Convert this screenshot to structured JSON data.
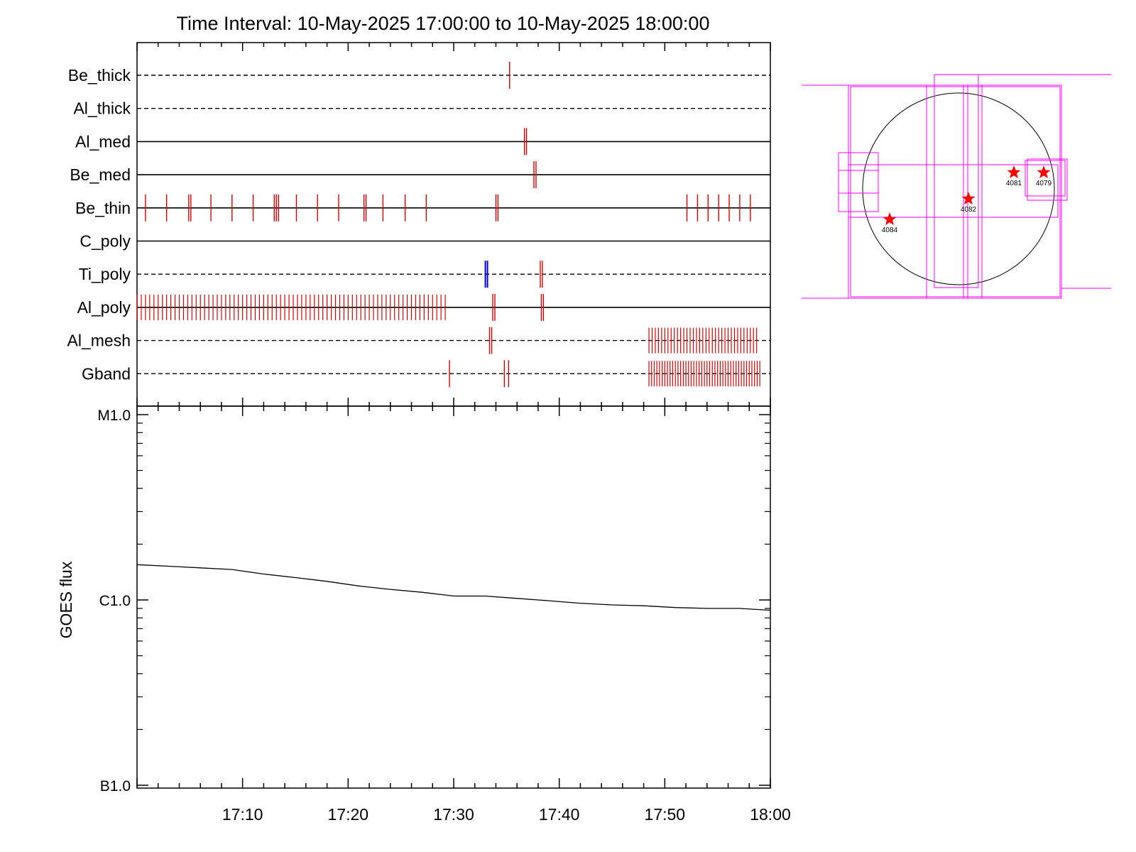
{
  "title": "Time Interval: 10-May-2025 17:00:00 to 10-May-2025 18:00:00",
  "chart_data": [
    {
      "type": "scatter",
      "description_type": "event timeline (tick marks per filter channel)",
      "x_range": [
        "17:00",
        "18:00"
      ],
      "x_ticks": [
        "17:10",
        "17:20",
        "17:30",
        "17:40",
        "17:50",
        "18:00"
      ],
      "channels": [
        {
          "name": "Be_thick",
          "line_style": "dashed",
          "events": [
            {
              "t": 35.3
            }
          ]
        },
        {
          "name": "Al_thick",
          "line_style": "dashed",
          "events": []
        },
        {
          "name": "Al_med",
          "line_style": "solid",
          "events": [
            {
              "t": 36.7
            },
            {
              "t": 36.9
            }
          ]
        },
        {
          "name": "Be_med",
          "line_style": "solid",
          "events": [
            {
              "t": 37.6
            },
            {
              "t": 37.8
            }
          ]
        },
        {
          "name": "Be_thin",
          "line_style": "solid",
          "events": [
            {
              "t": 0.8
            },
            {
              "t": 2.8
            },
            {
              "t": 4.9
            },
            {
              "t": 5.1
            },
            {
              "t": 7.0
            },
            {
              "t": 9.0
            },
            {
              "t": 11.0
            },
            {
              "t": 13.0
            },
            {
              "t": 13.2
            },
            {
              "t": 13.4
            },
            {
              "t": 15.1
            },
            {
              "t": 17.1
            },
            {
              "t": 19.1
            },
            {
              "t": 21.5
            },
            {
              "t": 21.7
            },
            {
              "t": 23.3
            },
            {
              "t": 25.4
            },
            {
              "t": 27.4
            },
            {
              "t": 34.0
            },
            {
              "t": 34.2
            },
            {
              "t": 52.1
            },
            {
              "t": 53.1
            },
            {
              "t": 54.1
            },
            {
              "t": 55.1
            },
            {
              "t": 56.1
            },
            {
              "t": 57.1
            },
            {
              "t": 58.1
            }
          ]
        },
        {
          "name": "C_poly",
          "line_style": "solid",
          "events": []
        },
        {
          "name": "Ti_poly",
          "line_style": "dashed",
          "events": [
            {
              "t": 33.0,
              "color": "#0000cc"
            },
            {
              "t": 33.2,
              "color": "#0000cc"
            },
            {
              "t": 38.2
            },
            {
              "t": 38.4
            }
          ]
        },
        {
          "name": "Al_poly",
          "line_style": "solid",
          "dense_ranges": [
            {
              "from": 0.0,
              "to": 29.5,
              "step": 0.4
            }
          ],
          "events": [
            {
              "t": 33.7
            },
            {
              "t": 33.9
            },
            {
              "t": 38.3
            },
            {
              "t": 38.5
            }
          ]
        },
        {
          "name": "Al_mesh",
          "line_style": "dashed",
          "dense_ranges": [
            {
              "from": 48.5,
              "to": 58.9,
              "step": 0.3
            }
          ],
          "events": [
            {
              "t": 33.4
            },
            {
              "t": 33.6
            }
          ]
        },
        {
          "name": "Gband",
          "line_style": "dashed",
          "dense_ranges": [
            {
              "from": 48.5,
              "to": 59.0,
              "step": 0.25
            }
          ],
          "events": [
            {
              "t": 29.6
            },
            {
              "t": 34.8
            },
            {
              "t": 35.2
            }
          ]
        }
      ]
    },
    {
      "type": "line",
      "ylabel": "GOES flux",
      "y_scale": "log",
      "y_ticks": [
        "B1.0",
        "C1.0",
        "M1.0"
      ],
      "x_ticks": [
        "17:10",
        "17:20",
        "17:30",
        "17:40",
        "17:50",
        "18:00"
      ],
      "x_range": [
        "17:00",
        "18:00"
      ],
      "series": [
        {
          "x_min": [
            0,
            3,
            6,
            9,
            12,
            15,
            18,
            21,
            24,
            27,
            30,
            33,
            36,
            39,
            42,
            45,
            48,
            51,
            54,
            57,
            60
          ],
          "flux_c": [
            1.55,
            1.52,
            1.49,
            1.46,
            1.38,
            1.32,
            1.26,
            1.19,
            1.14,
            1.1,
            1.05,
            1.05,
            1.02,
            0.99,
            0.96,
            0.94,
            0.93,
            0.91,
            0.9,
            0.9,
            0.88
          ]
        }
      ]
    },
    {
      "type": "scatter",
      "description_type": "solar disk map",
      "active_regions": [
        {
          "label": "4081"
        },
        {
          "label": "4079"
        },
        {
          "label": "4082"
        },
        {
          "label": "4084"
        }
      ]
    }
  ],
  "colors": {
    "events": "#dd0000",
    "events_blue": "#0000cc",
    "fov": "#ff00ff",
    "marker": "#ff0000"
  }
}
